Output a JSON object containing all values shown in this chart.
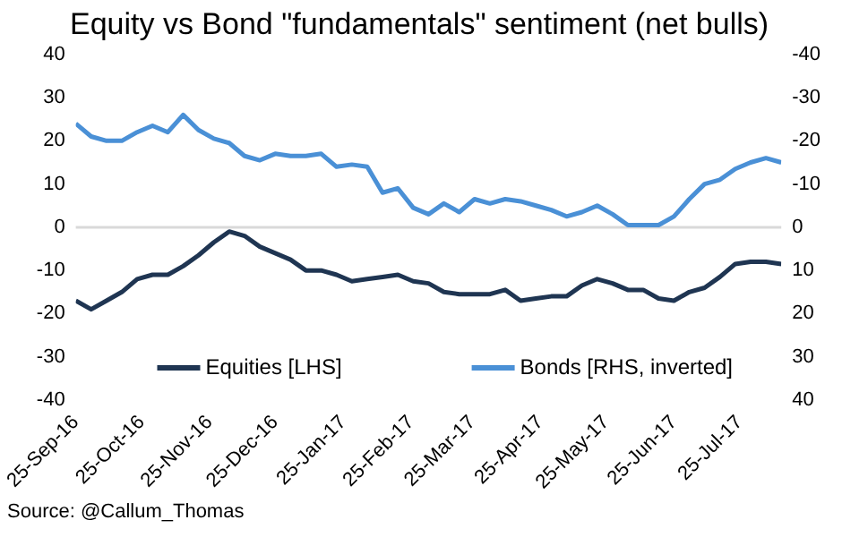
{
  "chart_data": {
    "type": "line",
    "title": "Equity vs Bond \"fundamentals\" sentiment (net bulls)",
    "x": [
      "2016-09-25",
      "2016-10-02",
      "2016-10-09",
      "2016-10-16",
      "2016-10-23",
      "2016-10-30",
      "2016-11-06",
      "2016-11-13",
      "2016-11-20",
      "2016-11-27",
      "2016-12-04",
      "2016-12-11",
      "2016-12-18",
      "2016-12-25",
      "2017-01-01",
      "2017-01-08",
      "2017-01-15",
      "2017-01-22",
      "2017-01-29",
      "2017-02-05",
      "2017-02-12",
      "2017-02-19",
      "2017-02-26",
      "2017-03-05",
      "2017-03-12",
      "2017-03-19",
      "2017-03-26",
      "2017-04-02",
      "2017-04-09",
      "2017-04-16",
      "2017-04-23",
      "2017-04-30",
      "2017-05-07",
      "2017-05-14",
      "2017-05-21",
      "2017-05-28",
      "2017-06-04",
      "2017-06-11",
      "2017-06-18",
      "2017-06-25",
      "2017-07-02",
      "2017-07-09",
      "2017-07-16",
      "2017-07-23",
      "2017-07-30",
      "2017-08-06",
      "2017-08-13"
    ],
    "series": [
      {
        "name": "Equities [LHS]",
        "color": "#1f3552",
        "values": [
          -17,
          -19,
          -17,
          -15,
          -12,
          -11,
          -11,
          -9,
          -6.5,
          -3.5,
          -1,
          -2,
          -4.5,
          -6,
          -7.5,
          -10,
          -10,
          -11,
          -12.5,
          -12,
          -11.5,
          -11,
          -12.5,
          -13,
          -15,
          -15.5,
          -15.5,
          -15.5,
          -14.5,
          -17,
          -16.5,
          -16,
          -16,
          -13.5,
          -12,
          -13,
          -14.5,
          -14.5,
          -16.5,
          -17,
          -15,
          -14,
          -11.5,
          -8.5,
          -8,
          -8,
          -8.5
        ]
      },
      {
        "name": "Bonds [RHS, inverted]",
        "color": "#4a90d6",
        "axis": "y2",
        "values": [
          -24,
          -21,
          -20,
          -20,
          -22,
          -23.5,
          -22,
          -26,
          -22.5,
          -20.5,
          -19.5,
          -16.5,
          -15.5,
          -17,
          -16.5,
          -16.5,
          -17,
          -14,
          -14.5,
          -14,
          -8,
          -9,
          -4.5,
          -3,
          -5.5,
          -3.5,
          -6.5,
          -5.5,
          -6.5,
          -6,
          -5,
          -4,
          -2.5,
          -3.5,
          -5,
          -3,
          -0.5,
          -0.5,
          -0.5,
          -2.5,
          -6.5,
          -10,
          -11,
          -13.5,
          -15,
          -16,
          -15
        ]
      }
    ],
    "ylim": [
      -40,
      40
    ],
    "yticks": [
      -40,
      -30,
      -20,
      -10,
      0,
      10,
      20,
      30,
      40
    ],
    "y2lim": [
      40,
      -40
    ],
    "y2ticks": [
      -40,
      -30,
      -20,
      -10,
      0,
      10,
      20,
      30,
      40
    ],
    "xlim": [
      "2016-09-25",
      "2017-08-13"
    ],
    "xticks": [
      {
        "value": "2016-09-25",
        "label": "25-Sep-16"
      },
      {
        "value": "2016-10-25",
        "label": "25-Oct-16"
      },
      {
        "value": "2016-11-25",
        "label": "25-Nov-16"
      },
      {
        "value": "2016-12-25",
        "label": "25-Dec-16"
      },
      {
        "value": "2017-01-25",
        "label": "25-Jan-17"
      },
      {
        "value": "2017-02-25",
        "label": "25-Feb-17"
      },
      {
        "value": "2017-03-25",
        "label": "25-Mar-17"
      },
      {
        "value": "2017-04-25",
        "label": "25-Apr-17"
      },
      {
        "value": "2017-05-25",
        "label": "25-May-17"
      },
      {
        "value": "2017-06-25",
        "label": "25-Jun-17"
      },
      {
        "value": "2017-07-25",
        "label": "25-Jul-17"
      }
    ],
    "ref_lines": [
      {
        "axis": "y",
        "value": 0,
        "color": "#d9d9d9"
      }
    ],
    "grid": false,
    "legend": "bottom",
    "marker": "none",
    "line_style": "solid",
    "annotations": [
      "Source: @Callum_Thomas"
    ]
  }
}
